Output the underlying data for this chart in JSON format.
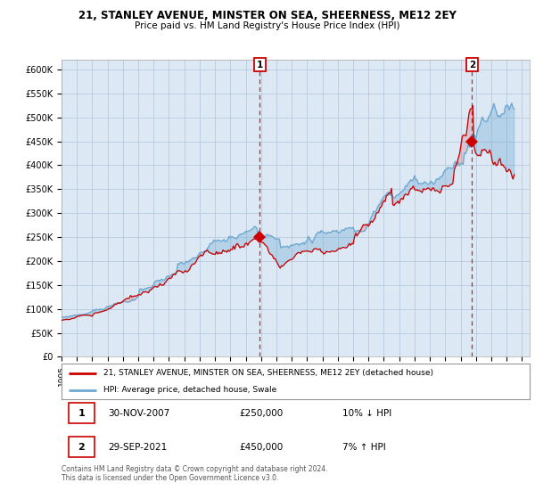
{
  "title": "21, STANLEY AVENUE, MINSTER ON SEA, SHEERNESS, ME12 2EY",
  "subtitle": "Price paid vs. HM Land Registry's House Price Index (HPI)",
  "hpi_color": "#6fa8d0",
  "price_color": "#cc0000",
  "bg_color": "#dce9f5",
  "grid_color": "#b0c4d8",
  "ylim": [
    0,
    620000
  ],
  "yticks": [
    0,
    50000,
    100000,
    150000,
    200000,
    250000,
    300000,
    350000,
    400000,
    450000,
    500000,
    550000,
    600000
  ],
  "ytick_labels": [
    "£0",
    "£50K",
    "£100K",
    "£150K",
    "£200K",
    "£250K",
    "£300K",
    "£350K",
    "£400K",
    "£450K",
    "£500K",
    "£550K",
    "£600K"
  ],
  "transaction1": {
    "date": "30-NOV-2007",
    "price": 250000,
    "x_year": 2007.917,
    "hpi_pct": "10%",
    "direction": "↓"
  },
  "transaction2": {
    "date": "29-SEP-2021",
    "price": 450000,
    "x_year": 2021.75,
    "hpi_pct": "7%",
    "direction": "↑"
  },
  "legend_price_label": "21, STANLEY AVENUE, MINSTER ON SEA, SHEERNESS, ME12 2EY (detached house)",
  "legend_hpi_label": "HPI: Average price, detached house, Swale",
  "footer": "Contains HM Land Registry data © Crown copyright and database right 2024.\nThis data is licensed under the Open Government Licence v3.0.",
  "xmin": 1995.0,
  "xmax": 2025.5
}
